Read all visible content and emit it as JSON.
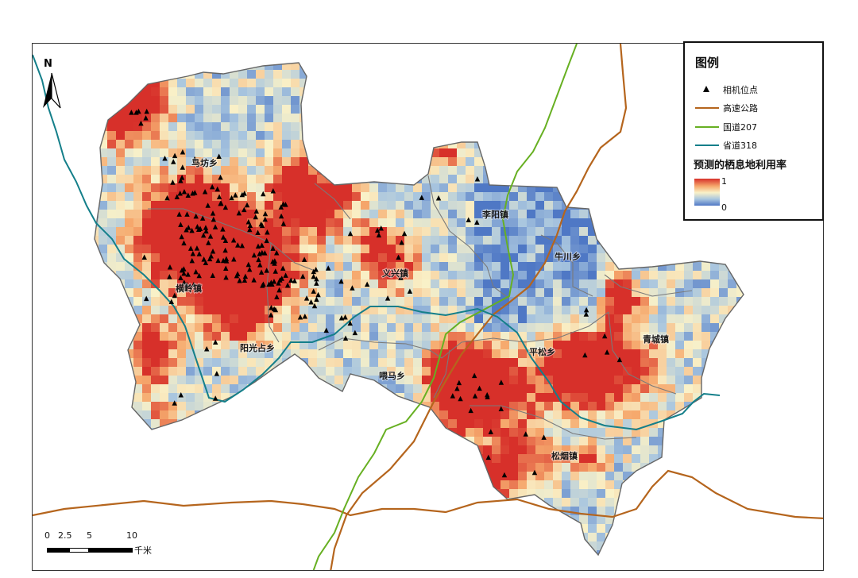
{
  "map": {
    "townships": [
      {
        "id": "mafang",
        "name": "马坊乡"
      },
      {
        "id": "liyang",
        "name": "李阳镇"
      },
      {
        "id": "niuchuan",
        "name": "牛川乡"
      },
      {
        "id": "yixing",
        "name": "义兴镇"
      },
      {
        "id": "hengling",
        "name": "横岭镇"
      },
      {
        "id": "yangguang",
        "name": "阳光占乡"
      },
      {
        "id": "pingsong",
        "name": "平松乡"
      },
      {
        "id": "qingcheng",
        "name": "青城镇"
      },
      {
        "id": "weima",
        "name": "喂马乡"
      },
      {
        "id": "songyan",
        "name": "松烟镇"
      }
    ]
  },
  "legend": {
    "title": "图例",
    "items": {
      "camera": {
        "label": "相机位点",
        "symbol": "triangle",
        "color": "#000000"
      },
      "expressway": {
        "label": "高速公路",
        "symbol": "line",
        "color": "#b5651d"
      },
      "national_road": {
        "label": "国道207",
        "symbol": "line",
        "color": "#67b022"
      },
      "provincial_road": {
        "label": "省道318",
        "symbol": "line",
        "color": "#147f8a"
      }
    },
    "habitat_title": "预测的栖息地利用率",
    "ramp_high": "1",
    "ramp_low": "0",
    "ramp_colors": [
      "#d7302a",
      "#f6a96d",
      "#f9f1c8",
      "#a9c6df",
      "#4f78c5"
    ]
  },
  "north_arrow": {
    "label": "N"
  },
  "scale_bar": {
    "ticks": [
      "0",
      "2.5",
      "5",
      "10"
    ],
    "unit": "千米"
  }
}
